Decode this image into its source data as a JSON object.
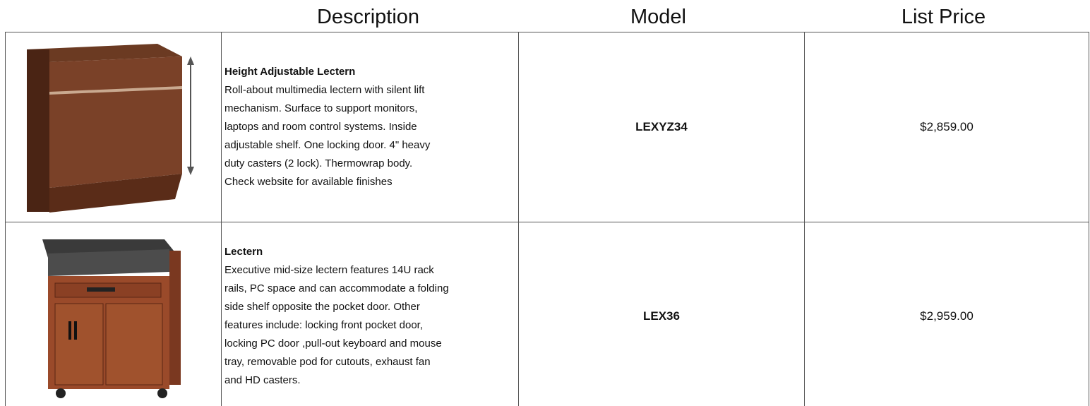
{
  "table": {
    "headers": [
      "Description",
      "Model",
      "List Price"
    ],
    "rows": [
      {
        "title": "Height Adjustable Lectern",
        "description": [
          "Roll-about multimedia lectern with silent lift",
          "mechanism. Surface to support monitors,",
          "laptops and room control systems. Inside",
          "adjustable shelf. One locking door. 4\" heavy",
          "duty casters (2 lock). Thermowrap body.",
          "Check website for available finishes"
        ],
        "model": "LEXYZ34",
        "price": "$2,859.00"
      },
      {
        "title": "Lectern",
        "description": [
          "Executive mid-size lectern features 14U rack",
          "rails, PC space and can accommodate a folding",
          "side shelf opposite the pocket door. Other",
          "features include: locking front pocket door,",
          "locking PC door ,pull-out keyboard and mouse",
          "tray, removable pod for cutouts, exhaust fan",
          "and HD casters."
        ],
        "model": "LEX36",
        "price": "$2,959.00"
      }
    ]
  }
}
